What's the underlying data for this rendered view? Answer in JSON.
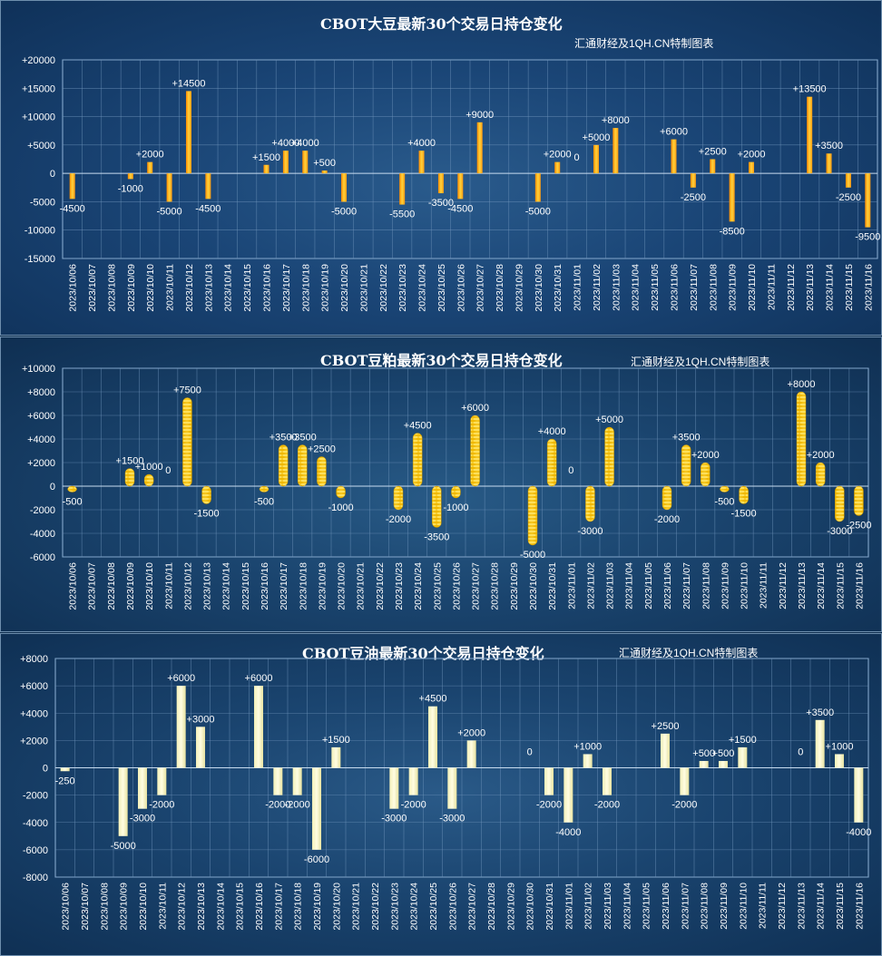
{
  "watermark": "汇通财经及1QH.CN特制图表",
  "dates": [
    "2023/10/06",
    "2023/10/07",
    "2023/10/08",
    "2023/10/09",
    "2023/10/10",
    "2023/10/11",
    "2023/10/12",
    "2023/10/13",
    "2023/10/14",
    "2023/10/15",
    "2023/10/16",
    "2023/10/17",
    "2023/10/18",
    "2023/10/19",
    "2023/10/20",
    "2023/10/21",
    "2023/10/22",
    "2023/10/23",
    "2023/10/24",
    "2023/10/25",
    "2023/10/26",
    "2023/10/27",
    "2023/10/28",
    "2023/10/29",
    "2023/10/30",
    "2023/10/31",
    "2023/11/01",
    "2023/11/02",
    "2023/11/03",
    "2023/11/04",
    "2023/11/05",
    "2023/11/06",
    "2023/11/07",
    "2023/11/08",
    "2023/11/09",
    "2023/11/10",
    "2023/11/11",
    "2023/11/12",
    "2023/11/13",
    "2023/11/14",
    "2023/11/15",
    "2023/11/16"
  ],
  "chart_data": [
    {
      "type": "bar",
      "title": "CBOT大豆最新30个交易日持仓变化",
      "yticks": [
        20000,
        15000,
        10000,
        5000,
        0,
        -5000,
        -10000,
        -15000
      ],
      "ytick_labels": [
        "+20000",
        "+15000",
        "+10000",
        "+5000",
        "0",
        "-5000",
        "-10000",
        "-15000"
      ],
      "ylim": [
        -15000,
        20000
      ],
      "values": [
        -4500,
        null,
        null,
        -1000,
        2000,
        -5000,
        14500,
        -4500,
        null,
        null,
        1500,
        4000,
        4000,
        500,
        -5000,
        null,
        null,
        -5500,
        4000,
        -3500,
        -4500,
        9000,
        null,
        null,
        -5000,
        2000,
        0,
        5000,
        8000,
        null,
        null,
        6000,
        -2500,
        2500,
        -8500,
        2000,
        null,
        null,
        13500,
        3500,
        -2500,
        -9500
      ],
      "data_labels": [
        "-4500",
        null,
        null,
        "-1000",
        "+2000",
        "-5000",
        "+14500",
        "-4500",
        null,
        null,
        "+1500",
        "+4000",
        "+4000",
        "+500",
        "-5000",
        null,
        null,
        "-5500",
        "+4000",
        "-3500",
        "-4500",
        "+9000",
        null,
        null,
        "-5000",
        "+2000",
        "0",
        "+5000",
        "+8000",
        null,
        null,
        "+6000",
        "-2500",
        "+2500",
        "-8500",
        "+2000",
        null,
        null,
        "+13500",
        "+3500",
        "-2500",
        "-9500"
      ]
    },
    {
      "type": "bar",
      "title": "CBOT豆粕最新30个交易日持仓变化",
      "yticks": [
        10000,
        8000,
        6000,
        4000,
        2000,
        0,
        -2000,
        -4000,
        -6000
      ],
      "ytick_labels": [
        "+10000",
        "+8000",
        "+6000",
        "+4000",
        "+2000",
        "0",
        "-2000",
        "-4000",
        "-6000"
      ],
      "ylim": [
        -6000,
        10000
      ],
      "values": [
        -500,
        null,
        null,
        1500,
        1000,
        0,
        7500,
        -1500,
        null,
        null,
        -500,
        3500,
        3500,
        2500,
        -1000,
        null,
        null,
        -2000,
        4500,
        -3500,
        -1000,
        6000,
        null,
        null,
        -5000,
        4000,
        0,
        -3000,
        5000,
        null,
        null,
        -2000,
        3500,
        2000,
        -500,
        -1500,
        null,
        null,
        8000,
        2000,
        -3000,
        -2500
      ],
      "data_labels": [
        "-500",
        null,
        null,
        "+1500",
        "+1000",
        "0",
        "+7500",
        "-1500",
        null,
        null,
        "-500",
        "+3500",
        "+3500",
        "+2500",
        "-1000",
        null,
        null,
        "-2000",
        "+4500",
        "-3500",
        "-1000",
        "+6000",
        null,
        null,
        "-5000",
        "+4000",
        "0",
        "-3000",
        "+5000",
        null,
        null,
        "-2000",
        "+3500",
        "+2000",
        "-500",
        "-1500",
        null,
        null,
        "+8000",
        "+2000",
        "-3000",
        "-2500"
      ]
    },
    {
      "type": "bar",
      "title": "CBOT豆油最新30个交易日持仓变化",
      "yticks": [
        8000,
        6000,
        4000,
        2000,
        0,
        -2000,
        -4000,
        -6000,
        -8000
      ],
      "ytick_labels": [
        "+8000",
        "+6000",
        "+4000",
        "+2000",
        "0",
        "-2000",
        "-4000",
        "-6000",
        "-8000"
      ],
      "ylim": [
        -8000,
        8000
      ],
      "values": [
        -250,
        null,
        null,
        -5000,
        -3000,
        -2000,
        6000,
        3000,
        null,
        null,
        6000,
        -2000,
        -2000,
        -6000,
        1500,
        null,
        null,
        -3000,
        -2000,
        4500,
        -3000,
        2000,
        null,
        null,
        0,
        -2000,
        -4000,
        1000,
        -2000,
        null,
        null,
        2500,
        -2000,
        500,
        500,
        1500,
        null,
        null,
        0,
        3500,
        1000,
        -4000
      ],
      "data_labels": [
        "-250",
        null,
        null,
        "-5000",
        "-3000",
        "-2000",
        "+6000",
        "+3000",
        null,
        null,
        "+6000",
        "-2000",
        "-2000",
        "-6000",
        "+1500",
        null,
        null,
        "-3000",
        "-2000",
        "+4500",
        "-3000",
        "+2000",
        null,
        null,
        "0",
        "-2000",
        "-4000",
        "+1000",
        "-2000",
        null,
        null,
        "+2500",
        "-2000",
        "+500",
        "+500",
        "+1500",
        null,
        null,
        "0",
        "+3500",
        "+1000",
        "-4000"
      ]
    }
  ]
}
